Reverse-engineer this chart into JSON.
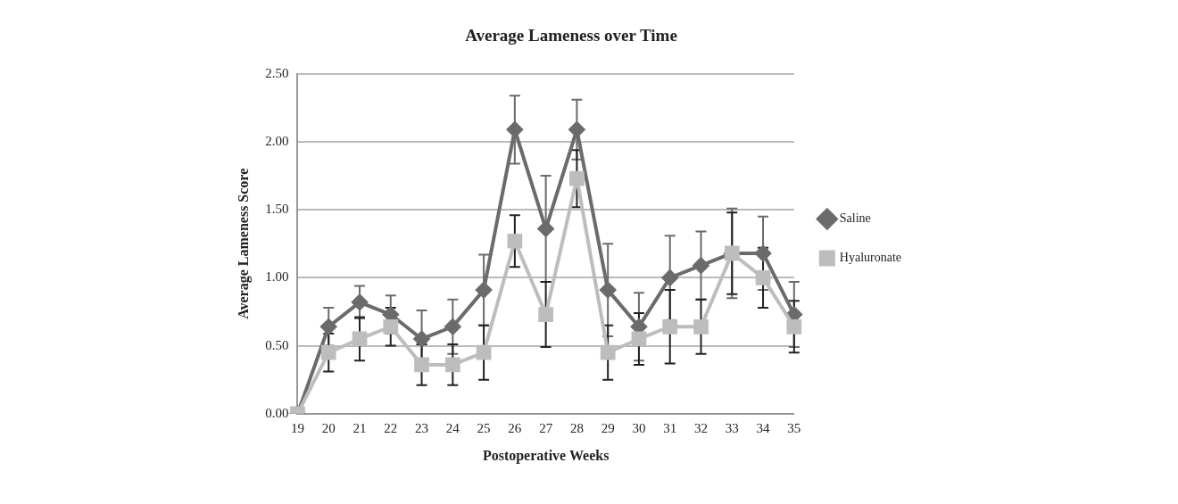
{
  "chart_data": {
    "type": "line",
    "title": "Average Lameness over Time",
    "xlabel": "Postoperative Weeks",
    "ylabel": "Average Lameness Score",
    "categories": [
      "19",
      "20",
      "21",
      "22",
      "23",
      "24",
      "25",
      "26",
      "27",
      "28",
      "29",
      "30",
      "31",
      "32",
      "33",
      "34",
      "35"
    ],
    "series": [
      {
        "name": "Saline",
        "color": "#6b6b6b",
        "marker": "diamond",
        "values": [
          0,
          0.64,
          0.82,
          0.73,
          0.55,
          0.64,
          0.91,
          2.09,
          1.36,
          2.09,
          0.91,
          0.64,
          1.0,
          1.09,
          1.18,
          1.18,
          0.73
        ],
        "errors": [
          null,
          0.14,
          0.12,
          0.14,
          0.21,
          0.2,
          0.26,
          0.25,
          0.39,
          0.22,
          0.34,
          0.25,
          0.31,
          0.25,
          0.33,
          0.27,
          0.24
        ]
      },
      {
        "name": "Hyaluronate",
        "color": "#bdbdbd",
        "marker": "square",
        "values": [
          0,
          0.45,
          0.55,
          0.64,
          0.36,
          0.36,
          0.45,
          1.27,
          0.73,
          1.73,
          0.45,
          0.55,
          0.64,
          0.64,
          1.18,
          1.0,
          0.64
        ],
        "errors": [
          null,
          0.14,
          0.16,
          0.14,
          0.15,
          0.15,
          0.2,
          0.19,
          0.24,
          0.21,
          0.2,
          0.19,
          0.27,
          0.2,
          0.3,
          0.22,
          0.19
        ]
      }
    ],
    "ylim": [
      0,
      2.5
    ],
    "yticks": [
      {
        "value": 0,
        "label": "0.00"
      },
      {
        "value": 0.5,
        "label": "0.50"
      },
      {
        "value": 1,
        "label": "1.00"
      },
      {
        "value": 1.5,
        "label": "1.50"
      },
      {
        "value": 2,
        "label": "2.00"
      },
      {
        "value": 2.5,
        "label": "2.50"
      }
    ],
    "grid": "y",
    "legend": "right",
    "line_style": "solid"
  }
}
